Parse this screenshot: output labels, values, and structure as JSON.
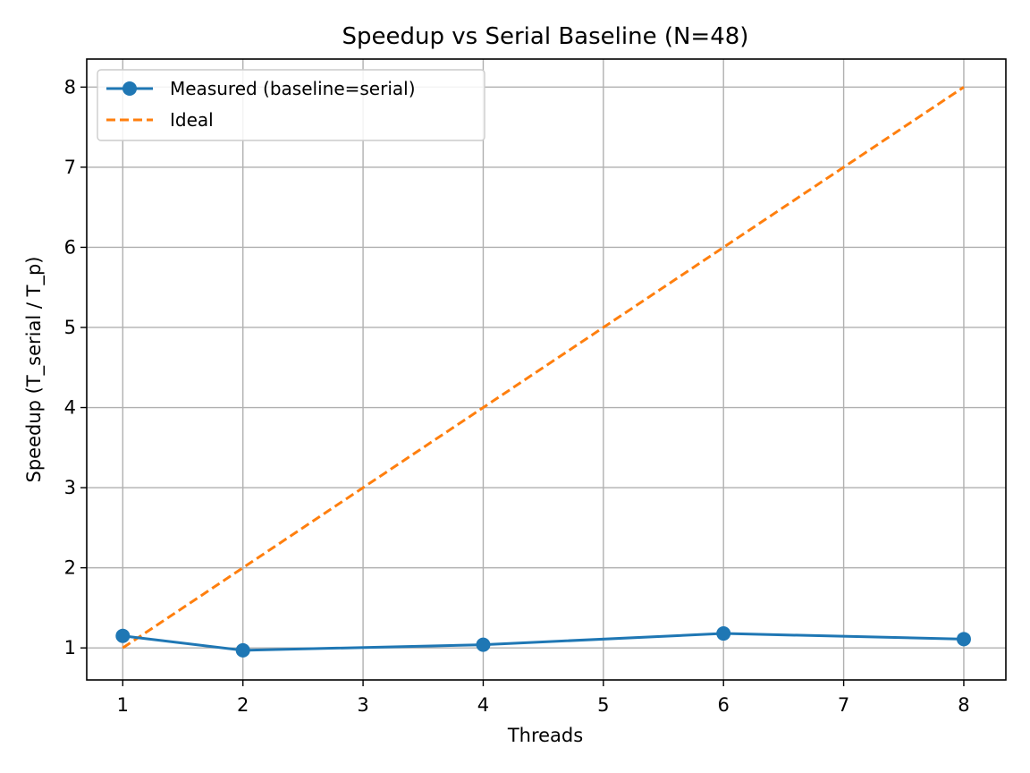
{
  "chart_data": {
    "type": "line",
    "title": "Speedup vs Serial Baseline (N=48)",
    "xlabel": "Threads",
    "ylabel": "Speedup (T_serial / T_p)",
    "xlim": [
      0.7,
      8.35
    ],
    "ylim": [
      0.6,
      8.35
    ],
    "xticks": [
      1,
      2,
      3,
      4,
      5,
      6,
      7,
      8
    ],
    "yticks": [
      1,
      2,
      3,
      4,
      5,
      6,
      7,
      8
    ],
    "grid": true,
    "legend_position": "top-left",
    "series": [
      {
        "name": "Measured (baseline=serial)",
        "style": "solid-with-markers",
        "color": "#1f77b4",
        "x": [
          1,
          2,
          4,
          6,
          8
        ],
        "y": [
          1.15,
          0.97,
          1.04,
          1.18,
          1.11
        ]
      },
      {
        "name": "Ideal",
        "style": "dashed",
        "color": "#ff7f0e",
        "x": [
          1,
          2,
          4,
          6,
          8
        ],
        "y": [
          1,
          2,
          4,
          6,
          8
        ]
      }
    ]
  }
}
